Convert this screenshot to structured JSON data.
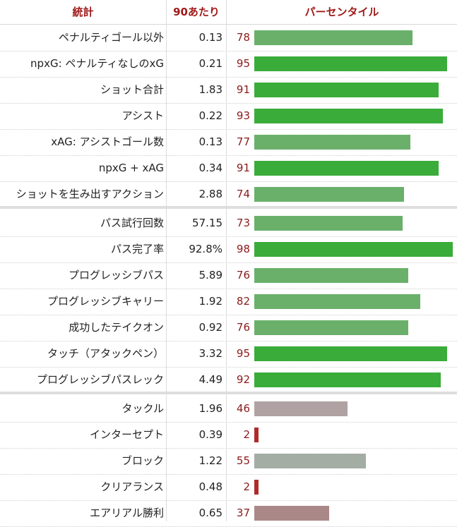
{
  "headers": {
    "stat": "統計",
    "per90": "90あたり",
    "percentile": "パーセンタイル"
  },
  "rows": [
    {
      "stat": "ペナルティゴール以外",
      "per90": "0.13",
      "pct": "78",
      "color": "#6ab06a"
    },
    {
      "stat": "npxG: ペナルティなしのxG",
      "per90": "0.21",
      "pct": "95",
      "color": "#3aac3a"
    },
    {
      "stat": "ショット合計",
      "per90": "1.83",
      "pct": "91",
      "color": "#3aac3a"
    },
    {
      "stat": "アシスト",
      "per90": "0.22",
      "pct": "93",
      "color": "#3aac3a"
    },
    {
      "stat": "xAG: アシストゴール数",
      "per90": "0.13",
      "pct": "77",
      "color": "#6ab06a"
    },
    {
      "stat": "npxG + xAG",
      "per90": "0.34",
      "pct": "91",
      "color": "#3aac3a"
    },
    {
      "stat": "ショットを生み出すアクション",
      "per90": "2.88",
      "pct": "74",
      "color": "#6ab06a"
    },
    {
      "stat": "パス試行回数",
      "per90": "57.15",
      "pct": "73",
      "color": "#6ab06a"
    },
    {
      "stat": "パス完了率",
      "per90": "92.8%",
      "pct": "98",
      "color": "#3aac3a"
    },
    {
      "stat": "プログレッシブパス",
      "per90": "5.89",
      "pct": "76",
      "color": "#6ab06a"
    },
    {
      "stat": "プログレッシブキャリー",
      "per90": "1.92",
      "pct": "82",
      "color": "#6ab06a"
    },
    {
      "stat": "成功したテイクオン",
      "per90": "0.92",
      "pct": "76",
      "color": "#6ab06a"
    },
    {
      "stat": "タッチ（アタックペン）",
      "per90": "3.32",
      "pct": "95",
      "color": "#3aac3a"
    },
    {
      "stat": "プログレッシブパスレック",
      "per90": "4.49",
      "pct": "92",
      "color": "#3aac3a"
    },
    {
      "stat": "タックル",
      "per90": "1.96",
      "pct": "46",
      "color": "#b0a2a2"
    },
    {
      "stat": "インターセプト",
      "per90": "0.39",
      "pct": "2",
      "color": "#b02a2a"
    },
    {
      "stat": "ブロック",
      "per90": "1.22",
      "pct": "55",
      "color": "#a4ada4"
    },
    {
      "stat": "クリアランス",
      "per90": "0.48",
      "pct": "2",
      "color": "#b02a2a"
    },
    {
      "stat": "エアリアル勝利",
      "per90": "0.65",
      "pct": "37",
      "color": "#ab8888"
    }
  ]
}
